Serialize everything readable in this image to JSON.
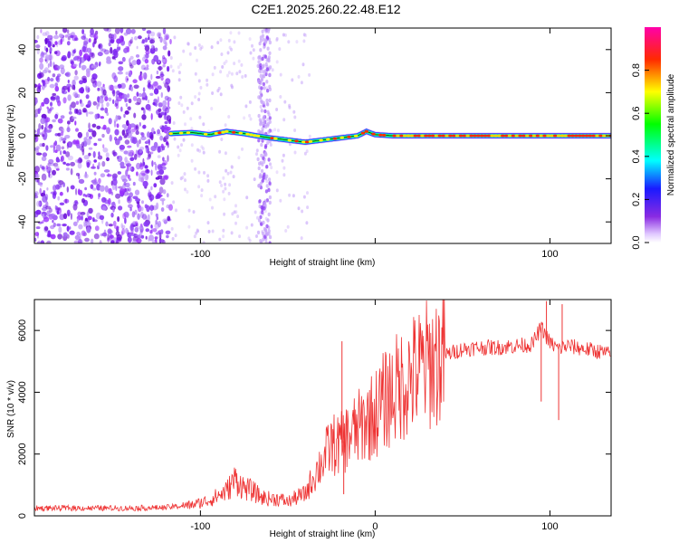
{
  "title": "C2E1.2025.260.22.48.E12",
  "chart_data": [
    {
      "type": "heatmap",
      "name": "spectrogram",
      "xlabel": "Height of straight line (km)",
      "ylabel": "Frequency (Hz)",
      "xlim": [
        -195,
        135
      ],
      "ylim": [
        -50,
        50
      ],
      "xticks": [
        -100,
        0,
        100
      ],
      "xtick_labels": [
        "-100",
        "",
        "100"
      ],
      "yticks": [
        -40,
        -20,
        0,
        20,
        40
      ],
      "ytick_labels": [
        "-40",
        "-20",
        "0",
        "20",
        "40"
      ],
      "noise_region_end_km": -117,
      "interference_band_km": [
        -67,
        -60
      ],
      "signal_track": {
        "x": [
          -117,
          -105,
          -95,
          -85,
          -75,
          -68,
          -60,
          -50,
          -40,
          -30,
          -20,
          -10,
          -5,
          0,
          10,
          20,
          40,
          60,
          80,
          100,
          120,
          135
        ],
        "freq": [
          1,
          1.5,
          0.5,
          2,
          1,
          0,
          -1,
          -2,
          -3,
          -2,
          -1,
          0,
          2,
          0.5,
          0,
          0,
          0,
          0,
          0,
          0,
          0,
          0
        ]
      }
    },
    {
      "type": "line",
      "name": "snr",
      "xlabel": "Height of straight line (km)",
      "ylabel": "SNR (10 * v/v)",
      "xlim": [
        -195,
        135
      ],
      "ylim": [
        0,
        7000
      ],
      "xticks": [
        -100,
        0,
        100
      ],
      "xtick_labels": [
        "-100",
        "0",
        "100"
      ],
      "yticks": [
        0,
        2000,
        4000,
        6000
      ],
      "ytick_labels": [
        "0",
        "2000",
        "4000",
        "6000"
      ],
      "series": [
        {
          "name": "SNR",
          "color": "#ee3333",
          "x": [
            -195,
            -180,
            -160,
            -140,
            -120,
            -105,
            -95,
            -85,
            -80,
            -75,
            -70,
            -65,
            -60,
            -55,
            -50,
            -45,
            -40,
            -35,
            -30,
            -25,
            -20,
            -15,
            -10,
            -5,
            0,
            5,
            10,
            20,
            30,
            40,
            50,
            60,
            70,
            80,
            90,
            95,
            100,
            105,
            110,
            120,
            130,
            135
          ],
          "y": [
            250,
            250,
            250,
            250,
            270,
            350,
            500,
            800,
            1200,
            900,
            800,
            600,
            550,
            550,
            450,
            600,
            700,
            1300,
            1800,
            2300,
            2300,
            2600,
            2800,
            3100,
            3300,
            3700,
            4000,
            4500,
            4900,
            5200,
            5400,
            5450,
            5450,
            5500,
            5550,
            6100,
            5600,
            5400,
            5500,
            5400,
            5300,
            5200
          ]
        }
      ]
    },
    {
      "type": "colorbar",
      "label": "Normalized spectral amplitude",
      "range": [
        0,
        1
      ],
      "ticks": [
        0.0,
        0.2,
        0.4,
        0.6,
        0.8
      ],
      "tick_labels": [
        "0.0",
        "0.2",
        "0.4",
        "0.6",
        "0.8"
      ]
    }
  ]
}
